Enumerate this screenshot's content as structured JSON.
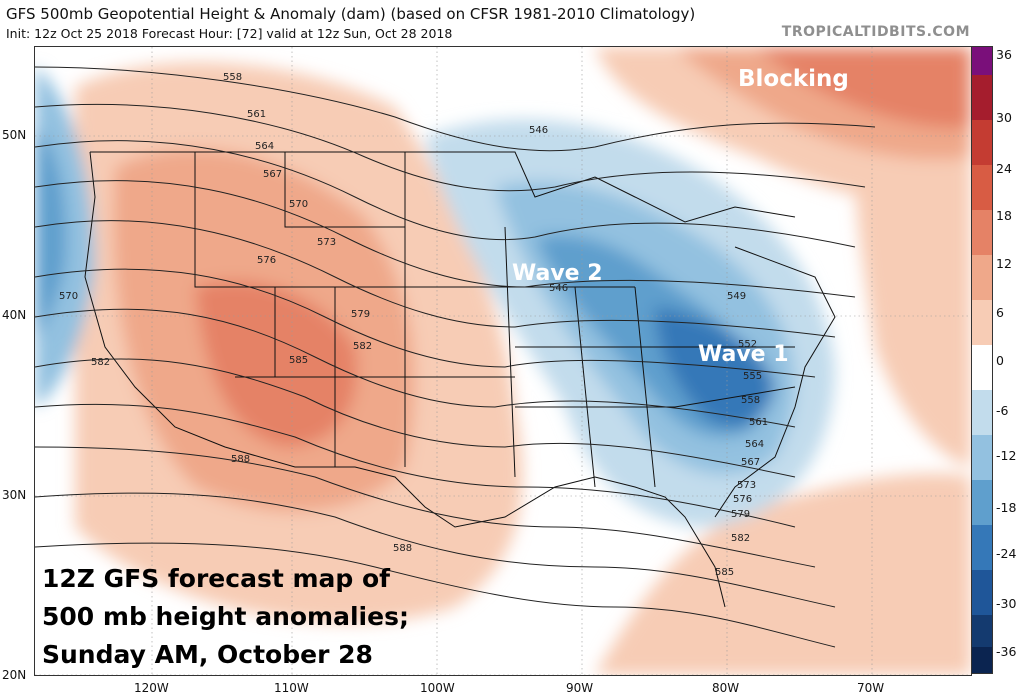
{
  "header": {
    "title": "GFS 500mb Geopotential Height & Anomaly (dam) (based on CFSR 1981-2010 Climatology)",
    "subtitle": "Init: 12z Oct 25 2018   Forecast Hour: [72]   valid at 12z Sun, Oct 28 2018",
    "brand": "TROPICALTIDBITS.COM"
  },
  "colorbar": {
    "labels": [
      "36",
      "30",
      "24",
      "18",
      "12",
      "6",
      "0",
      "-6",
      "-12",
      "-18",
      "-24",
      "-30",
      "-36"
    ],
    "colors": [
      "#7a0f7a",
      "#a51d2d",
      "#c43c32",
      "#d85c44",
      "#e58266",
      "#efa88a",
      "#f7ccb5",
      "#ffffff",
      "#c2dcec",
      "#93c1e0",
      "#5f9fcd",
      "#3578b8",
      "#1f5699",
      "#143a6f",
      "#0b2450"
    ]
  },
  "axes": {
    "lat_labels": [
      "50N",
      "40N",
      "30N",
      "20N"
    ],
    "lon_labels": [
      "120W",
      "110W",
      "100W",
      "90W",
      "80W",
      "70W"
    ]
  },
  "contours": {
    "west_labels": [
      "558",
      "561",
      "564",
      "567",
      "570",
      "573",
      "576",
      "579",
      "582",
      "585",
      "588",
      "570",
      "582"
    ],
    "east_labels": [
      "546",
      "546",
      "549",
      "552",
      "555",
      "558",
      "561",
      "564",
      "567",
      "573",
      "576",
      "579",
      "582",
      "585",
      "588"
    ]
  },
  "annotations": {
    "blocking": "Blocking",
    "wave1": "Wave 1",
    "wave2": "Wave 2",
    "caption_lines": [
      "12Z GFS forecast map of",
      "500 mb height anomalies;",
      "Sunday AM, October 28"
    ]
  }
}
